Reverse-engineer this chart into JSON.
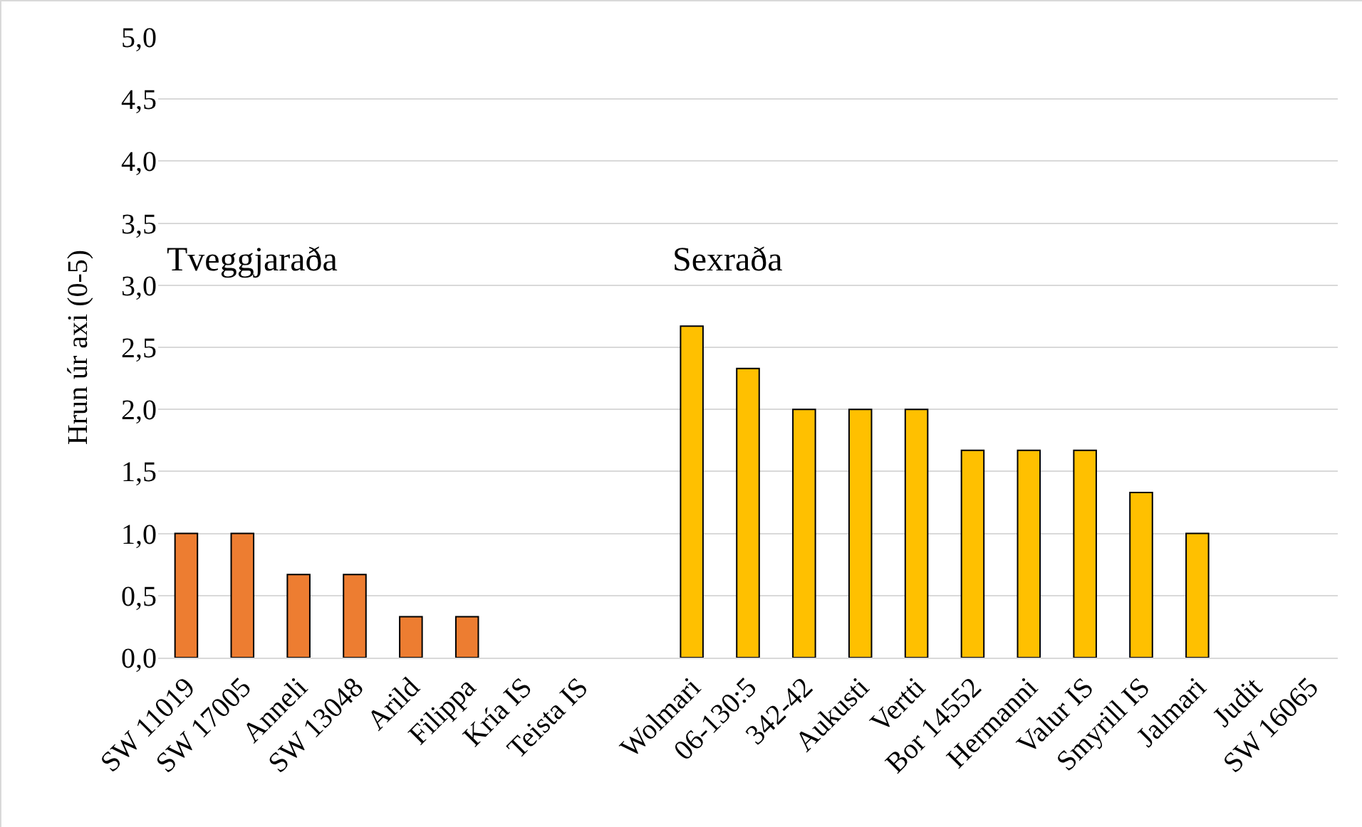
{
  "chart_data": {
    "type": "bar",
    "ylabel": "Hrun úr axi (0-5)",
    "categories": [
      "SW 11019",
      "SW 17005",
      "Anneli",
      "SW 13048",
      "Arild",
      "Filippa",
      "Kría IS",
      "Teista IS",
      null,
      "Wolmari",
      "06-130:5",
      "342-42",
      "Aukusti",
      "Vertti",
      "Bor 14552",
      "Hermanni",
      "Valur IS",
      "Smyrill IS",
      "Jalmari",
      "Judit",
      "SW 16065"
    ],
    "values": [
      1,
      1,
      0.67,
      0.67,
      0.33,
      0.33,
      0,
      0,
      null,
      2.67,
      2.33,
      2,
      2,
      2,
      1.67,
      1.67,
      1.67,
      1.33,
      1,
      0,
      0
    ],
    "colors": [
      "#ed7d31",
      "#ed7d31",
      "#ed7d31",
      "#ed7d31",
      "#ed7d31",
      "#ed7d31",
      "#ed7d31",
      "#ed7d31",
      "#ed7d31",
      "#ffc000",
      "#ffc000",
      "#ffc000",
      "#ffc000",
      "#ffc000",
      "#ffc000",
      "#ffc000",
      "#ffc000",
      "#ffc000",
      "#ffc000",
      "#ffc000",
      "#ffc000"
    ],
    "ylim": [
      0,
      5
    ],
    "yticks": [
      {
        "value": 0,
        "label": "0,0"
      },
      {
        "value": 0.5,
        "label": "0,5"
      },
      {
        "value": 1,
        "label": "1,0"
      },
      {
        "value": 1.5,
        "label": "1,5"
      },
      {
        "value": 2,
        "label": "2,0"
      },
      {
        "value": 2.5,
        "label": "2,5"
      },
      {
        "value": 3,
        "label": "3,0"
      },
      {
        "value": 3.5,
        "label": "3,5"
      },
      {
        "value": 4,
        "label": "4,0"
      },
      {
        "value": 4.5,
        "label": "4,5"
      },
      {
        "value": 5,
        "label": "5,0"
      }
    ],
    "grid": "y",
    "annotations": [
      "Tveggjaraða",
      "Sexraða"
    ]
  }
}
